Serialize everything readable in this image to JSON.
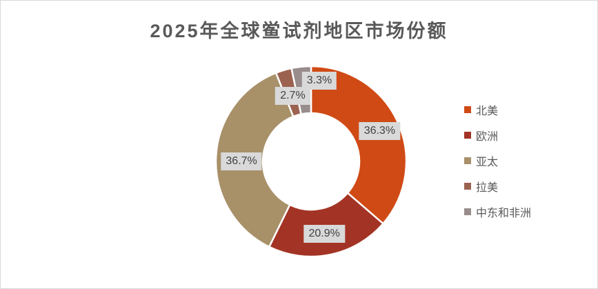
{
  "chart_data": {
    "type": "pie",
    "subtype": "donut",
    "title": "2025年全球鲎试剂地区市场份额",
    "categories": [
      "北美",
      "欧洲",
      "亚太",
      "拉美",
      "中东和非洲"
    ],
    "values": [
      36.3,
      20.9,
      36.7,
      2.7,
      3.3
    ],
    "data_labels": [
      "36.3%",
      "20.9%",
      "36.7%",
      "2.7%",
      "3.3%"
    ],
    "colors": [
      "#D04A15",
      "#A33425",
      "#A89069",
      "#9C6250",
      "#998C8D"
    ],
    "legend_position": "right",
    "start_angle_deg": 0,
    "direction": "clockwise",
    "hole_ratio": 0.5,
    "styles": {
      "title_color": "#595959",
      "label_background": "#D9D9D9",
      "label_text_color": "#404040",
      "legend_text_color": "#595959",
      "slice_border_color": "#FFFFFF",
      "frame_border_color": "#D9D9D9",
      "background": "#FFFFFF"
    }
  }
}
